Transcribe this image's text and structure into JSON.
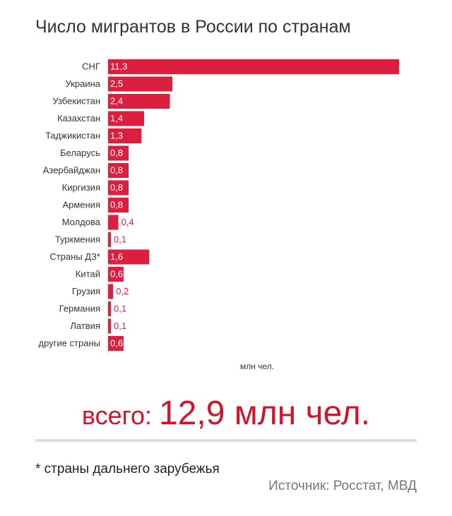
{
  "chart_data": {
    "type": "bar",
    "orientation": "horizontal",
    "title": "Число мигрантов в России по странам",
    "xlabel": "млн чел.",
    "categories": [
      "СНГ",
      "Украина",
      "Узбекистан",
      "Казахстан",
      "Таджикистан",
      "Беларусь",
      "Азербайджан",
      "Киргизия",
      "Армения",
      "Молдова",
      "Туркмения",
      "Страны ДЗ*",
      "Китай",
      "Грузия",
      "Германия",
      "Латвия",
      "другие страны"
    ],
    "values": [
      11.3,
      2.5,
      2.4,
      1.4,
      1.3,
      0.8,
      0.8,
      0.8,
      0.8,
      0.4,
      0.1,
      1.6,
      0.6,
      0.2,
      0.1,
      0.1,
      0.6
    ],
    "value_labels": [
      "11,3",
      "2,5",
      "2,4",
      "1,4",
      "1,3",
      "0,8",
      "0,8",
      "0,8",
      "0,8",
      "0,4",
      "0,1",
      "1,6",
      "0,6",
      "0,2",
      "0,1",
      "0,1",
      "0,6"
    ],
    "xlim": [
      0,
      11.3
    ],
    "grid": false,
    "bar_color": "#dc1f3f"
  },
  "total": {
    "label": "всего: ",
    "value": "12,9 млн чел."
  },
  "footnote": "* страны дальнего зарубежья",
  "source": "Источник: Росстат, МВД"
}
